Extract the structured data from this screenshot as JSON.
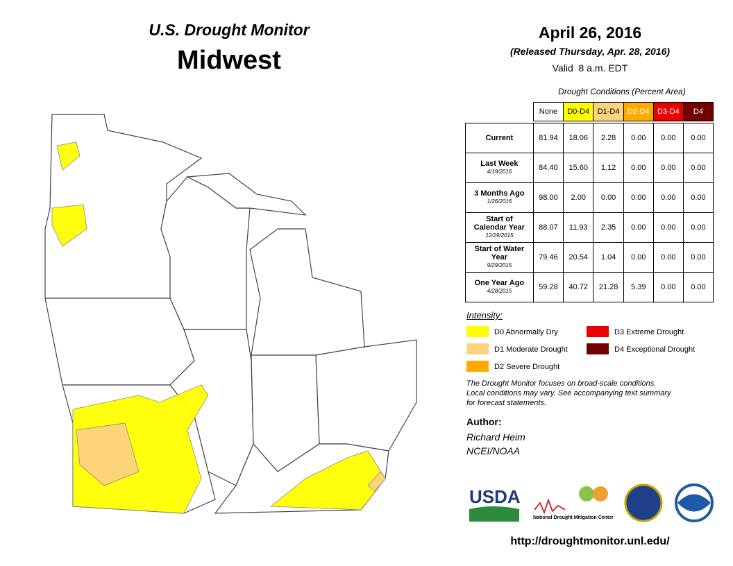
{
  "title": "U.S. Drought Monitor",
  "region": "Midwest",
  "date": "April 26, 2016",
  "released": "(Released Thursday, Apr. 28, 2016)",
  "valid": "Valid  8 a.m. EDT",
  "table": {
    "caption": "Drought Conditions (Percent Area)",
    "columns": [
      {
        "label": "None",
        "color": "#ffffff",
        "text": "#000000"
      },
      {
        "label": "D0-D4",
        "color": "#ffff00",
        "text": "#000000"
      },
      {
        "label": "D1-D4",
        "color": "#fcd37f",
        "text": "#000000"
      },
      {
        "label": "D2-D4",
        "color": "#ffaa00",
        "text": "#ffffff"
      },
      {
        "label": "D3-D4",
        "color": "#e60000",
        "text": "#ffffff"
      },
      {
        "label": "D4",
        "color": "#730000",
        "text": "#ffffff"
      }
    ],
    "rows": [
      {
        "label": "Current",
        "values": [
          "81.94",
          "18.06",
          "2.28",
          "0.00",
          "0.00",
          "0.00"
        ]
      },
      {
        "label": "Last Week",
        "date": "4/19/2016",
        "values": [
          "84.40",
          "15.60",
          "1.12",
          "0.00",
          "0.00",
          "0.00"
        ]
      },
      {
        "label": "3 Months Ago",
        "date": "1/26/2016",
        "values": [
          "98.00",
          "2.00",
          "0.00",
          "0.00",
          "0.00",
          "0.00"
        ]
      },
      {
        "label": "Start of Calendar Year",
        "date": "12/29/2015",
        "values": [
          "88.07",
          "11.93",
          "2.35",
          "0.00",
          "0.00",
          "0.00"
        ]
      },
      {
        "label": "Start of Water Year",
        "date": "9/29/2015",
        "values": [
          "79.46",
          "20.54",
          "1.04",
          "0.00",
          "0.00",
          "0.00"
        ]
      },
      {
        "label": "One Year Ago",
        "date": "4/28/2015",
        "values": [
          "59.28",
          "40.72",
          "21.28",
          "5.39",
          "0.00",
          "0.00"
        ]
      }
    ]
  },
  "legend": {
    "title": "Intensity:",
    "items": [
      {
        "label": "D0 Abnormally Dry",
        "color": "#ffff00"
      },
      {
        "label": "D1 Moderate Drought",
        "color": "#fcd37f"
      },
      {
        "label": "D2 Severe Drought",
        "color": "#ffaa00"
      },
      {
        "label": "D3 Extreme Drought",
        "color": "#e60000"
      },
      {
        "label": "D4 Exceptional Drought",
        "color": "#730000"
      }
    ]
  },
  "note": [
    "The Drought Monitor focuses on broad-scale conditions.",
    "Local conditions may vary. See accompanying text summary",
    "for forecast statements."
  ],
  "author": {
    "heading": "Author:",
    "lines": [
      "Richard Heim",
      "NCEI/NOAA"
    ]
  },
  "logos": {
    "usda": "USDA",
    "ndmc": "National Drought Mitigation Center"
  },
  "url": "http://droughtmonitor.unl.edu/"
}
